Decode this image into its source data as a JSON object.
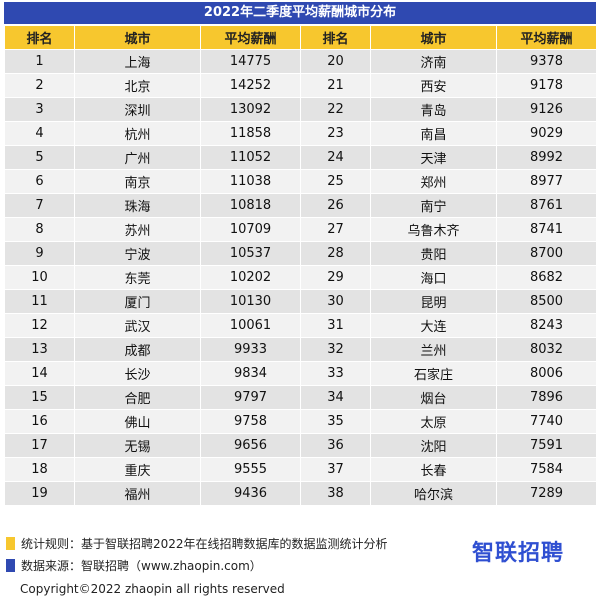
{
  "title": "2022年二季度平均薪酬城市分布",
  "headers": [
    "排名",
    "城市",
    "平均薪酬",
    "排名",
    "城市",
    "平均薪酬"
  ],
  "rows": [
    [
      "1",
      "上海",
      "14775",
      "20",
      "济南",
      "9378"
    ],
    [
      "2",
      "北京",
      "14252",
      "21",
      "西安",
      "9178"
    ],
    [
      "3",
      "深圳",
      "13092",
      "22",
      "青岛",
      "9126"
    ],
    [
      "4",
      "杭州",
      "11858",
      "23",
      "南昌",
      "9029"
    ],
    [
      "5",
      "广州",
      "11052",
      "24",
      "天津",
      "8992"
    ],
    [
      "6",
      "南京",
      "11038",
      "25",
      "郑州",
      "8977"
    ],
    [
      "7",
      "珠海",
      "10818",
      "26",
      "南宁",
      "8761"
    ],
    [
      "8",
      "苏州",
      "10709",
      "27",
      "乌鲁木齐",
      "8741"
    ],
    [
      "9",
      "宁波",
      "10537",
      "28",
      "贵阳",
      "8700"
    ],
    [
      "10",
      "东莞",
      "10202",
      "29",
      "海口",
      "8682"
    ],
    [
      "11",
      "厦门",
      "10130",
      "30",
      "昆明",
      "8500"
    ],
    [
      "12",
      "武汉",
      "10061",
      "31",
      "大连",
      "8243"
    ],
    [
      "13",
      "成都",
      "9933",
      "32",
      "兰州",
      "8032"
    ],
    [
      "14",
      "长沙",
      "9834",
      "33",
      "石家庄",
      "8006"
    ],
    [
      "15",
      "合肥",
      "9797",
      "34",
      "烟台",
      "7896"
    ],
    [
      "16",
      "佛山",
      "9758",
      "35",
      "太原",
      "7740"
    ],
    [
      "17",
      "无锡",
      "9656",
      "36",
      "沈阳",
      "7591"
    ],
    [
      "18",
      "重庆",
      "9555",
      "37",
      "长春",
      "7584"
    ],
    [
      "19",
      "福州",
      "9436",
      "38",
      "哈尔滨",
      "7289"
    ]
  ],
  "notes": {
    "rule": "统计规则：基于智联招聘2022年在线招聘数据库的数据监测统计分析",
    "source": "数据来源：智联招聘（www.zhaopin.com）",
    "rule_color": "#f7c72e",
    "source_color": "#2f49b1"
  },
  "logo": "智联招聘",
  "copyright": "Copyright©2022 zhaopin all rights reserved",
  "colors": {
    "title_bg": "#2f49b1",
    "header_bg": "#f7c72e",
    "row_odd": "#e3e3e3",
    "row_even": "#f2f2f2"
  }
}
